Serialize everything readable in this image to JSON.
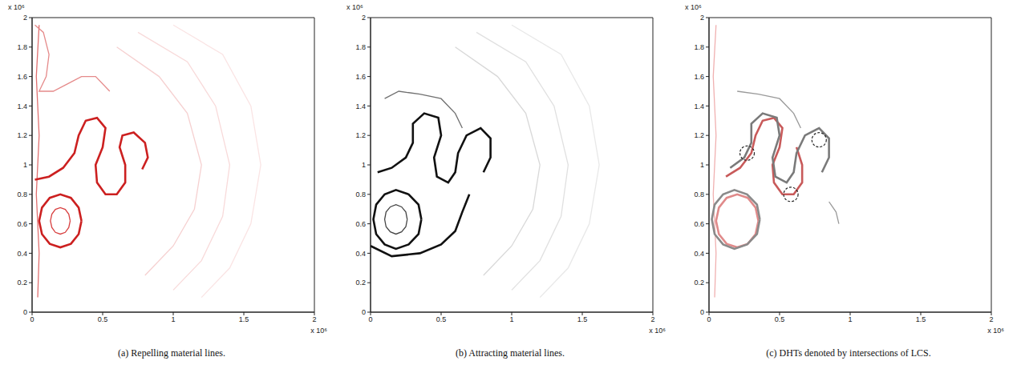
{
  "chart_data": [
    {
      "type": "line",
      "title": "(a) Repelling material lines.",
      "x_offset_label": "x 10⁶",
      "y_offset_label": "x 10⁶",
      "xlim": [
        0,
        2
      ],
      "ylim": [
        0,
        2
      ],
      "xticks": [
        0,
        0.5,
        1,
        1.5,
        2
      ],
      "yticks": [
        0,
        0.2,
        0.4,
        0.6,
        0.8,
        1,
        1.2,
        1.4,
        1.6,
        1.8,
        2
      ],
      "series": [
        {
          "color": "#f6d0d0",
          "line_style": "thin",
          "x": [
            0.6,
            0.9,
            1.1,
            1.2,
            1.15,
            1.0,
            0.8
          ],
          "values": [
            1.8,
            1.6,
            1.35,
            1.0,
            0.7,
            0.45,
            0.25
          ]
        },
        {
          "color": "#f8dada",
          "line_style": "thin",
          "x": [
            0.75,
            1.1,
            1.3,
            1.4,
            1.35,
            1.2,
            1.0
          ],
          "values": [
            1.9,
            1.7,
            1.4,
            1.0,
            0.65,
            0.35,
            0.15
          ]
        },
        {
          "color": "#fae4e4",
          "line_style": "thin",
          "x": [
            1.0,
            1.35,
            1.55,
            1.62,
            1.55,
            1.4,
            1.2
          ],
          "values": [
            1.95,
            1.75,
            1.4,
            1.0,
            0.6,
            0.3,
            0.1
          ]
        },
        {
          "color": "#e07070",
          "line_style": "thin",
          "x": [
            0.04,
            0.05,
            0.03,
            0.05,
            0.03,
            0.05
          ],
          "values": [
            0.1,
            0.4,
            0.8,
            1.2,
            1.6,
            1.95
          ]
        },
        {
          "color": "#e58a8a",
          "line_style": "thin",
          "x": [
            0.02,
            0.08,
            0.12,
            0.1,
            0.05,
            0.15,
            0.25,
            0.35,
            0.45,
            0.55
          ],
          "values": [
            1.95,
            1.9,
            1.75,
            1.6,
            1.5,
            1.5,
            1.55,
            1.6,
            1.6,
            1.5
          ]
        },
        {
          "color": "#cc2020",
          "line_style": "solid",
          "x": [
            0.02,
            0.12,
            0.22,
            0.3,
            0.33,
            0.38,
            0.46,
            0.52,
            0.5,
            0.45,
            0.46,
            0.52,
            0.6,
            0.66,
            0.66,
            0.62,
            0.64,
            0.72,
            0.8,
            0.82,
            0.78
          ],
          "values": [
            0.9,
            0.92,
            0.98,
            1.08,
            1.2,
            1.3,
            1.32,
            1.25,
            1.12,
            1.0,
            0.88,
            0.8,
            0.8,
            0.88,
            1.0,
            1.12,
            1.2,
            1.22,
            1.15,
            1.05,
            0.97
          ]
        },
        {
          "color": "#cc2020",
          "line_style": "solid",
          "x": [
            0.35,
            0.33,
            0.275,
            0.2,
            0.125,
            0.07,
            0.05,
            0.07,
            0.125,
            0.2,
            0.275,
            0.33,
            0.35
          ],
          "values": [
            0.62,
            0.71,
            0.776,
            0.8,
            0.776,
            0.71,
            0.62,
            0.53,
            0.464,
            0.44,
            0.464,
            0.53,
            0.62
          ]
        },
        {
          "color": "#d84040",
          "line_style": "thin",
          "x": [
            0.27,
            0.26,
            0.235,
            0.2,
            0.165,
            0.14,
            0.13,
            0.14,
            0.165,
            0.2,
            0.235,
            0.26,
            0.27
          ],
          "values": [
            0.62,
            0.665,
            0.698,
            0.71,
            0.698,
            0.665,
            0.62,
            0.575,
            0.542,
            0.53,
            0.542,
            0.575,
            0.62
          ]
        }
      ]
    },
    {
      "type": "line",
      "title": "(b) Attracting material lines.",
      "x_offset_label": "x 10⁶",
      "y_offset_label": "x 10⁶",
      "xlim": [
        0,
        2
      ],
      "ylim": [
        0,
        2
      ],
      "xticks": [
        0,
        0.5,
        1,
        1.5,
        2
      ],
      "yticks": [
        0,
        0.2,
        0.4,
        0.6,
        0.8,
        1,
        1.2,
        1.4,
        1.6,
        1.8,
        2
      ],
      "series": [
        {
          "color": "#d8d8d8",
          "line_style": "thin",
          "x": [
            0.6,
            0.9,
            1.1,
            1.2,
            1.15,
            1.0,
            0.8
          ],
          "values": [
            1.8,
            1.6,
            1.35,
            1.0,
            0.7,
            0.45,
            0.25
          ]
        },
        {
          "color": "#e0e0e0",
          "line_style": "thin",
          "x": [
            0.75,
            1.1,
            1.3,
            1.4,
            1.35,
            1.2,
            1.0
          ],
          "values": [
            1.9,
            1.7,
            1.4,
            1.0,
            0.65,
            0.35,
            0.15
          ]
        },
        {
          "color": "#e8e8e8",
          "line_style": "thin",
          "x": [
            1.0,
            1.35,
            1.55,
            1.62,
            1.55,
            1.4,
            1.2
          ],
          "values": [
            1.95,
            1.75,
            1.4,
            1.0,
            0.6,
            0.3,
            0.1
          ]
        },
        {
          "color": "#707070",
          "line_style": "thin",
          "x": [
            0.1,
            0.2,
            0.35,
            0.5,
            0.6,
            0.65
          ],
          "values": [
            1.45,
            1.5,
            1.48,
            1.45,
            1.35,
            1.25
          ]
        },
        {
          "color": "#111111",
          "line_style": "solid",
          "x": [
            0.0,
            0.15,
            0.35,
            0.5,
            0.6,
            0.65,
            0.7
          ],
          "values": [
            0.45,
            0.38,
            0.4,
            0.46,
            0.55,
            0.68,
            0.8
          ]
        },
        {
          "color": "#111111",
          "line_style": "solid",
          "x": [
            0.05,
            0.15,
            0.25,
            0.3,
            0.3,
            0.38,
            0.48,
            0.5,
            0.45,
            0.47,
            0.55,
            0.6,
            0.62,
            0.68,
            0.78,
            0.85,
            0.85,
            0.8
          ],
          "values": [
            0.95,
            0.98,
            1.05,
            1.15,
            1.28,
            1.35,
            1.32,
            1.2,
            1.05,
            0.92,
            0.88,
            0.95,
            1.08,
            1.2,
            1.25,
            1.18,
            1.05,
            0.95
          ]
        },
        {
          "color": "#111111",
          "line_style": "solid",
          "x": [
            0.36,
            0.34,
            0.27,
            0.18,
            0.1,
            0.04,
            0.02,
            0.04,
            0.1,
            0.18,
            0.27,
            0.34,
            0.36
          ],
          "values": [
            0.63,
            0.73,
            0.8,
            0.83,
            0.8,
            0.73,
            0.63,
            0.53,
            0.46,
            0.43,
            0.46,
            0.53,
            0.63
          ]
        },
        {
          "color": "#444444",
          "line_style": "thin",
          "x": [
            0.26,
            0.25,
            0.22,
            0.18,
            0.14,
            0.11,
            0.1,
            0.11,
            0.14,
            0.18,
            0.22,
            0.25,
            0.26
          ],
          "values": [
            0.63,
            0.68,
            0.715,
            0.73,
            0.715,
            0.68,
            0.63,
            0.58,
            0.545,
            0.53,
            0.545,
            0.58,
            0.63
          ]
        }
      ]
    },
    {
      "type": "line",
      "title": "(c) DHTs denoted by intersections of LCS.",
      "x_offset_label": "x 10⁶",
      "y_offset_label": "x 10⁶",
      "xlim": [
        0,
        2
      ],
      "ylim": [
        0,
        2
      ],
      "xticks": [
        0,
        0.5,
        1,
        1.5,
        2
      ],
      "yticks": [
        0,
        0.2,
        0.4,
        0.6,
        0.8,
        1,
        1.2,
        1.4,
        1.6,
        1.8,
        2
      ],
      "series": [
        {
          "color": "#f0b0b0",
          "line_style": "thin",
          "x": [
            0.04,
            0.05,
            0.03,
            0.05,
            0.03,
            0.05
          ],
          "values": [
            0.1,
            0.4,
            0.8,
            1.2,
            1.6,
            1.95
          ]
        },
        {
          "color": "#e08a8a",
          "line_style": "solid",
          "x": [
            0.35,
            0.33,
            0.275,
            0.2,
            0.125,
            0.07,
            0.05,
            0.07,
            0.125,
            0.2,
            0.275,
            0.33,
            0.35
          ],
          "values": [
            0.62,
            0.71,
            0.776,
            0.8,
            0.776,
            0.71,
            0.62,
            0.53,
            0.464,
            0.44,
            0.464,
            0.53,
            0.62
          ]
        },
        {
          "color": "#c85a5a",
          "line_style": "solid",
          "x": [
            0.12,
            0.22,
            0.3,
            0.33,
            0.38,
            0.46,
            0.52,
            0.5,
            0.45,
            0.46,
            0.52,
            0.6,
            0.66,
            0.66,
            0.62
          ],
          "values": [
            0.92,
            0.98,
            1.08,
            1.2,
            1.3,
            1.32,
            1.25,
            1.12,
            1.0,
            0.88,
            0.8,
            0.8,
            0.88,
            1.0,
            1.12
          ]
        },
        {
          "color": "#8a8a8a",
          "line_style": "solid",
          "x": [
            0.36,
            0.34,
            0.27,
            0.18,
            0.1,
            0.04,
            0.02,
            0.04,
            0.1,
            0.18,
            0.27,
            0.34,
            0.36
          ],
          "values": [
            0.63,
            0.73,
            0.8,
            0.83,
            0.8,
            0.73,
            0.63,
            0.53,
            0.46,
            0.43,
            0.46,
            0.53,
            0.63
          ]
        },
        {
          "color": "#7a7a7a",
          "line_style": "solid",
          "x": [
            0.15,
            0.25,
            0.3,
            0.3,
            0.38,
            0.48,
            0.5,
            0.45,
            0.47,
            0.55,
            0.6,
            0.62,
            0.68,
            0.78,
            0.85,
            0.85,
            0.8
          ],
          "values": [
            0.98,
            1.05,
            1.15,
            1.28,
            1.35,
            1.32,
            1.2,
            1.05,
            0.92,
            0.88,
            0.95,
            1.08,
            1.2,
            1.25,
            1.18,
            1.05,
            0.95
          ]
        },
        {
          "color": "#9a9a9a",
          "line_style": "thin",
          "x": [
            0.2,
            0.35,
            0.5,
            0.6,
            0.65
          ],
          "values": [
            1.5,
            1.48,
            1.45,
            1.35,
            1.25
          ]
        },
        {
          "color": "#9a9a9a",
          "line_style": "thin",
          "x": [
            0.85,
            0.9,
            0.92
          ],
          "values": [
            0.75,
            0.68,
            0.6
          ]
        },
        {
          "color": "#222222",
          "type": "scatter",
          "marker": "circle",
          "x": [
            0.27,
            0.78,
            0.58
          ],
          "values": [
            1.08,
            1.17,
            0.8
          ]
        }
      ]
    }
  ]
}
